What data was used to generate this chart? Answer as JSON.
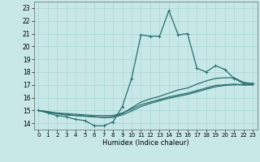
{
  "xlabel": "Humidex (Indice chaleur)",
  "xlim": [
    -0.5,
    23.5
  ],
  "ylim": [
    13.5,
    23.5
  ],
  "xticks": [
    0,
    1,
    2,
    3,
    4,
    5,
    6,
    7,
    8,
    9,
    10,
    11,
    12,
    13,
    14,
    15,
    16,
    17,
    18,
    19,
    20,
    21,
    22,
    23
  ],
  "yticks": [
    14,
    15,
    16,
    17,
    18,
    19,
    20,
    21,
    22,
    23
  ],
  "bg_color": "#c8e8e8",
  "grid_color": "#aad4d4",
  "line_color": "#2a6e6e",
  "line1_x": [
    0,
    1,
    2,
    3,
    4,
    5,
    6,
    7,
    8,
    9,
    10,
    11,
    12,
    13,
    14,
    15,
    16,
    17,
    18,
    19,
    20,
    21,
    22,
    23
  ],
  "line1_y": [
    15.0,
    14.8,
    14.6,
    14.5,
    14.3,
    14.2,
    13.8,
    13.8,
    14.1,
    15.3,
    17.5,
    20.9,
    20.8,
    20.8,
    22.8,
    20.9,
    21.0,
    18.3,
    18.0,
    18.5,
    18.2,
    17.5,
    17.1,
    17.1
  ],
  "line2_x": [
    0,
    1,
    2,
    3,
    4,
    5,
    6,
    7,
    8,
    9,
    10,
    11,
    12,
    13,
    14,
    15,
    16,
    17,
    18,
    19,
    20,
    21,
    22,
    23
  ],
  "line2_y": [
    15.0,
    14.9,
    14.75,
    14.65,
    14.6,
    14.55,
    14.5,
    14.45,
    14.5,
    14.75,
    15.2,
    15.65,
    15.9,
    16.1,
    16.35,
    16.6,
    16.75,
    17.05,
    17.3,
    17.5,
    17.55,
    17.55,
    17.2,
    17.1
  ],
  "line3_x": [
    0,
    1,
    2,
    3,
    4,
    5,
    6,
    7,
    8,
    9,
    10,
    11,
    12,
    13,
    14,
    15,
    16,
    17,
    18,
    19,
    20,
    21,
    22,
    23
  ],
  "line3_y": [
    15.0,
    14.9,
    14.8,
    14.75,
    14.7,
    14.65,
    14.6,
    14.6,
    14.6,
    14.8,
    15.1,
    15.45,
    15.65,
    15.85,
    16.05,
    16.2,
    16.35,
    16.55,
    16.75,
    16.95,
    17.0,
    17.05,
    17.0,
    17.0
  ],
  "line4_x": [
    0,
    1,
    2,
    3,
    4,
    5,
    6,
    7,
    8,
    9,
    10,
    11,
    12,
    13,
    14,
    15,
    16,
    17,
    18,
    19,
    20,
    21,
    22,
    23
  ],
  "line4_y": [
    15.0,
    14.85,
    14.75,
    14.65,
    14.6,
    14.55,
    14.5,
    14.45,
    14.45,
    14.65,
    14.95,
    15.3,
    15.55,
    15.75,
    15.95,
    16.1,
    16.25,
    16.45,
    16.65,
    16.85,
    16.95,
    17.0,
    17.0,
    17.0
  ]
}
